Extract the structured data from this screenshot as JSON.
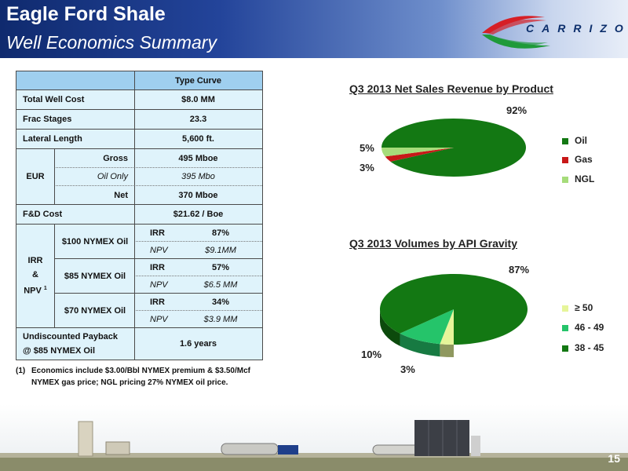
{
  "header": {
    "title": "Eagle Ford Shale",
    "subtitle": "Well Economics Summary"
  },
  "logo": {
    "text": "CARRIZO"
  },
  "table": {
    "col_header": "Type Curve",
    "total_well_cost": {
      "label": "Total Well Cost",
      "value": "$8.0 MM"
    },
    "frac_stages": {
      "label": "Frac Stages",
      "value": "23.3"
    },
    "lateral_length": {
      "label": "Lateral Length",
      "value": "5,600 ft."
    },
    "eur": {
      "label": "EUR",
      "gross": {
        "label": "Gross",
        "value": "495 Mboe"
      },
      "oil_only": {
        "label": "Oil Only",
        "value": "395 Mbo"
      },
      "net": {
        "label": "Net",
        "value": "370 Mboe"
      }
    },
    "fd_cost": {
      "label": "F&D Cost",
      "value": "$21.62 / Boe"
    },
    "irr_npv": {
      "label_line1": "IRR",
      "label_line2": "&",
      "label_line3": "NPV",
      "label_sup": "1",
      "scenarios": [
        {
          "name": "$100 NYMEX Oil",
          "irr_label": "IRR",
          "irr": "87%",
          "npv_label": "NPV",
          "npv": "$9.1MM"
        },
        {
          "name": "$85 NYMEX Oil",
          "irr_label": "IRR",
          "irr": "57%",
          "npv_label": "NPV",
          "npv": "$6.5 MM"
        },
        {
          "name": "$70 NYMEX Oil",
          "irr_label": "IRR",
          "irr": "34%",
          "npv_label": "NPV",
          "npv": "$3.9 MM"
        }
      ]
    },
    "payback": {
      "label_line1": "Undiscounted Payback",
      "label_line2": "@ $85 NYMEX Oil",
      "value": "1.6 years"
    }
  },
  "footnote": {
    "number": "(1)",
    "text": "Economics include $3.00/Bbl NYMEX premium & $3.50/Mcf NYMEX gas price; NGL pricing 27% NYMEX oil price."
  },
  "chart_data": [
    {
      "type": "pie",
      "title": "Q3 2013 Net Sales Revenue by Product",
      "categories": [
        "Oil",
        "Gas",
        "NGL"
      ],
      "values": [
        92,
        3,
        5
      ],
      "value_labels": [
        "92%",
        "3%",
        "5%"
      ],
      "colors": [
        "#137813",
        "#c81818",
        "#a6dc7a"
      ],
      "legend_position": "right"
    },
    {
      "type": "pie",
      "title": "Q3 2013 Volumes by API Gravity",
      "categories": [
        "≥ 50",
        "46 -  49",
        "38 -  45"
      ],
      "values": [
        3,
        10,
        87
      ],
      "value_labels": [
        "3%",
        "10%",
        "87%"
      ],
      "colors": [
        "#e6f59a",
        "#25c46a",
        "#137813"
      ],
      "legend_position": "right"
    }
  ],
  "page_number": "15"
}
